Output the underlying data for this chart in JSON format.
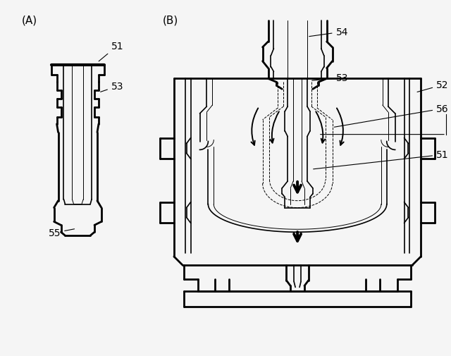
{
  "background_color": "#f5f5f5",
  "line_color": "#000000",
  "figsize": [
    6.4,
    5.06
  ],
  "dpi": 100
}
